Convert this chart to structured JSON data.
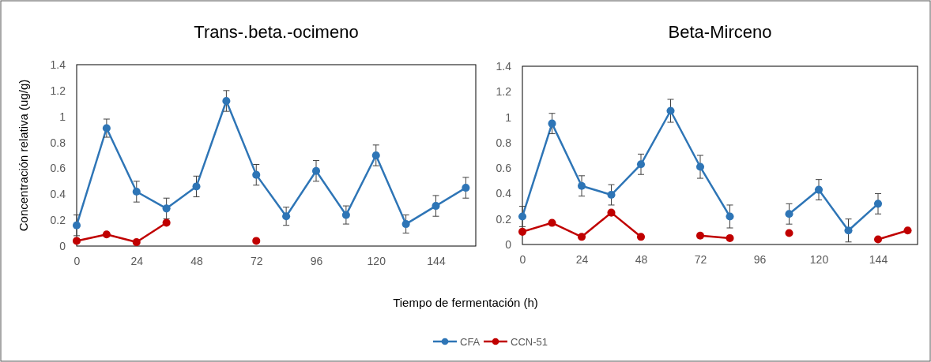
{
  "chart_data": [
    {
      "type": "line",
      "title": "Trans-.beta.-ocimeno",
      "ylabel": "Concentración relativa (ug/g)",
      "xlabel": "Tiempo de fermentación (h)",
      "x": [
        0,
        12,
        24,
        36,
        48,
        60,
        72,
        84,
        96,
        108,
        120,
        132,
        144,
        156
      ],
      "series": [
        {
          "name": "CFA",
          "color": "#2e75b6",
          "values": [
            0.16,
            0.91,
            0.42,
            0.29,
            0.46,
            1.12,
            0.55,
            0.23,
            0.58,
            0.24,
            0.7,
            0.17,
            0.31,
            0.45
          ],
          "errors": [
            0.08,
            0.07,
            0.08,
            0.08,
            0.08,
            0.08,
            0.08,
            0.07,
            0.08,
            0.07,
            0.08,
            0.07,
            0.08,
            0.08
          ]
        },
        {
          "name": "CCN-51",
          "color": "#c00000",
          "values": [
            0.04,
            0.09,
            0.03,
            0.18,
            null,
            null,
            0.04,
            null,
            null,
            null,
            null,
            null,
            null,
            null
          ]
        }
      ],
      "xlim": [
        0,
        160
      ],
      "xticks": [
        0,
        24,
        48,
        72,
        96,
        120,
        144
      ],
      "ylim": [
        0,
        1.4
      ],
      "yticks": [
        0,
        0.2,
        0.4,
        0.6,
        0.8,
        1,
        1.2,
        1.4
      ],
      "marker": "circle",
      "line_style": "solid",
      "grid": false,
      "legend": "bottom"
    },
    {
      "type": "line",
      "title": "Beta-Mirceno",
      "x": [
        0,
        12,
        24,
        36,
        48,
        60,
        72,
        84,
        96,
        108,
        120,
        132,
        144,
        156
      ],
      "series": [
        {
          "name": "CFA",
          "color": "#2e75b6",
          "values": [
            0.22,
            0.95,
            0.46,
            0.39,
            0.63,
            1.05,
            0.61,
            0.22,
            null,
            0.24,
            0.43,
            0.11,
            0.32,
            null
          ],
          "errors": [
            0.08,
            0.08,
            0.08,
            0.08,
            0.08,
            0.09,
            0.09,
            0.09,
            null,
            0.08,
            0.08,
            0.09,
            0.08,
            null
          ]
        },
        {
          "name": "CCN-51",
          "color": "#c00000",
          "values": [
            0.1,
            0.17,
            0.06,
            0.25,
            0.06,
            null,
            0.07,
            0.05,
            null,
            0.09,
            null,
            null,
            0.04,
            0.11
          ]
        }
      ],
      "xlim": [
        0,
        160
      ],
      "xticks": [
        0,
        24,
        48,
        72,
        96,
        120,
        144
      ],
      "ylim": [
        0,
        1.4
      ],
      "yticks": [
        0,
        0.2,
        0.4,
        0.6,
        0.8,
        1,
        1.2,
        1.4
      ],
      "marker": "circle",
      "line_style": "solid",
      "grid": false
    }
  ]
}
